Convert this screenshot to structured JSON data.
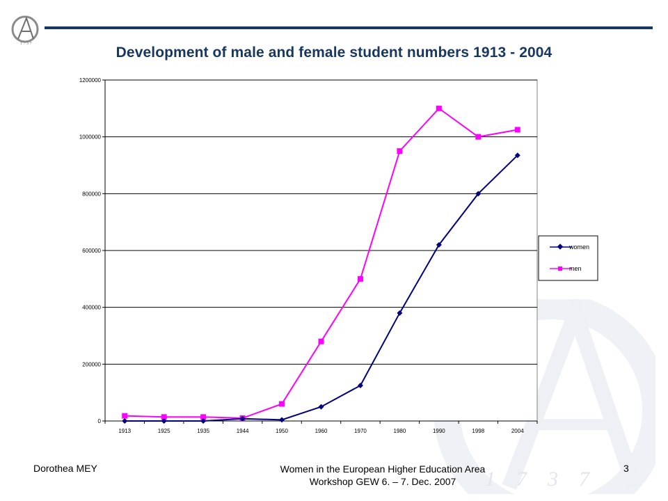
{
  "slide": {
    "title": "Development of male and female student numbers 1913 - 2004",
    "footer_left": "Dorothea MEY",
    "footer_center_line1": "Women in the European Higher Education Area",
    "footer_center_line2": "Workshop GEW  6. – 7. Dec. 2007",
    "page_number": "3",
    "watermark_digits": [
      "1",
      "7",
      "3",
      "7"
    ]
  },
  "colors": {
    "title": "#17375e",
    "rule": "#17375e",
    "women": "#000080",
    "men": "#ff00ff"
  },
  "chart_data": {
    "type": "line",
    "title": "",
    "xlabel": "",
    "ylabel": "",
    "categories": [
      "1913",
      "1925",
      "1935",
      "1944",
      "1950",
      "1960",
      "1970",
      "1980",
      "1990",
      "1998",
      "2004"
    ],
    "series": [
      {
        "name": "women",
        "marker": "diamond",
        "color": "#000080",
        "values": [
          0,
          0,
          0,
          8000,
          4000,
          50000,
          125000,
          380000,
          620000,
          800000,
          935000
        ]
      },
      {
        "name": "men",
        "marker": "square",
        "color": "#ff00ff",
        "values": [
          18000,
          14000,
          14000,
          10000,
          60000,
          280000,
          500000,
          950000,
          1100000,
          1000000,
          1025000
        ]
      }
    ],
    "yticks": [
      0,
      200000,
      400000,
      600000,
      800000,
      1000000,
      1200000
    ],
    "ylim": [
      0,
      1200000
    ],
    "grid": "horizontal",
    "legend_position": "right"
  }
}
